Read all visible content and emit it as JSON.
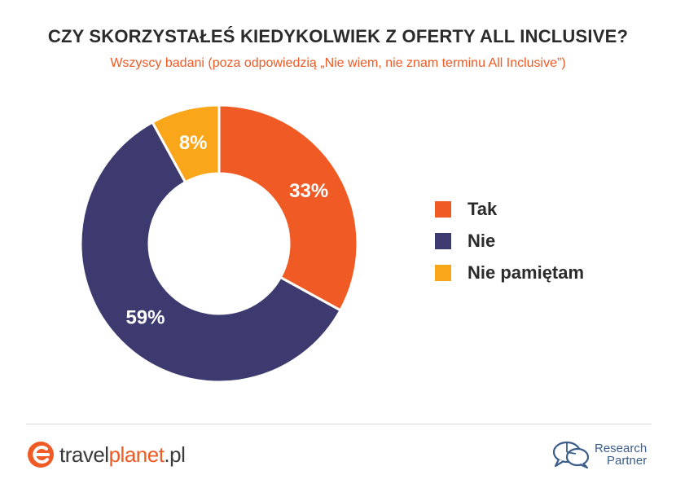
{
  "header": {
    "title": "CZY SKORZYSTAŁEŚ KIEDYKOLWIEK Z OFERTY ALL INCLUSIVE?",
    "subtitle": "Wszyscy badani (poza odpowiedzią „Nie wiem, nie znam terminu All Inclusive”)"
  },
  "chart_data": {
    "type": "pie",
    "donut": true,
    "title": "CZY SKORZYSTAŁEŚ KIEDYKOLWIEK Z OFERTY ALL INCLUSIVE?",
    "subtitle": "Wszyscy badani (poza odpowiedzią „Nie wiem, nie znam terminu All Inclusive”)",
    "categories": [
      "Tak",
      "Nie",
      "Nie pamiętam"
    ],
    "values": [
      33,
      59,
      8
    ],
    "labels": [
      "33%",
      "59%",
      "8%"
    ],
    "colors": [
      "#f05a24",
      "#3c3a6e",
      "#f9a61a"
    ],
    "legend_position": "right"
  },
  "legend": {
    "items": [
      {
        "label": "Tak",
        "color": "#f05a24"
      },
      {
        "label": "Nie",
        "color": "#3c3a6e"
      },
      {
        "label": "Nie pamiętam",
        "color": "#f9a61a"
      }
    ]
  },
  "footer": {
    "logo_left": {
      "part1": "travel",
      "part2": "planet",
      "part3": ".pl"
    },
    "logo_right": {
      "line1": "Research",
      "line2": "Partner"
    }
  },
  "colors": {
    "accent": "#f05a24",
    "brand_blue": "#3b5d8a"
  }
}
